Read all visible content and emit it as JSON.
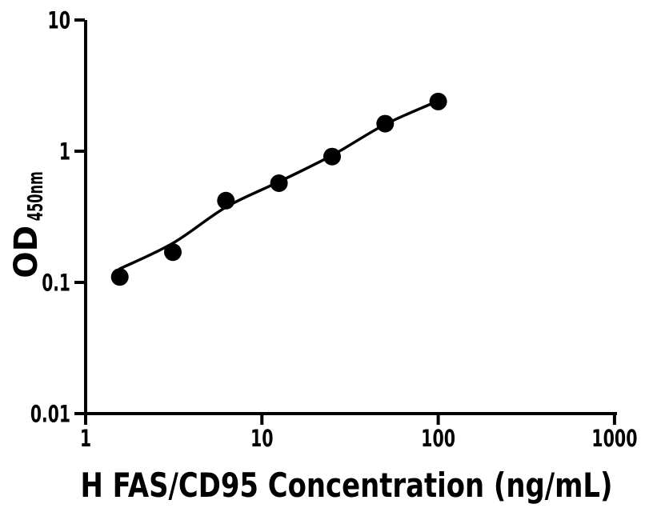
{
  "figure": {
    "background_color": "#ffffff",
    "ink_color": "#000000"
  },
  "chart_data": {
    "type": "scatter",
    "description": "ELISA standard curve, filled circles with smooth fitted line on log-log axes",
    "title": "",
    "xlabel": "H FAS/CD95 Concentration (ng/mL)",
    "ylabel": "OD",
    "ylabel_subscript": "450nm",
    "x_scale": "log10",
    "y_scale": "log10",
    "xlim": [
      1,
      1000
    ],
    "ylim": [
      0.01,
      10
    ],
    "x_ticks": [
      "1",
      "10",
      "100",
      "1000"
    ],
    "y_ticks": [
      "0.01",
      "0.1",
      "1",
      "10"
    ],
    "grid": false,
    "legend": false,
    "marker_color": "#000000",
    "line_color": "#000000",
    "series": [
      {
        "name": "standards",
        "type": "scatter",
        "marker": "filled-circle",
        "color": "#000000",
        "x": [
          1.5625,
          3.125,
          6.25,
          12.5,
          25,
          50,
          100
        ],
        "y": [
          0.11,
          0.17,
          0.42,
          0.57,
          0.91,
          1.62,
          2.39
        ]
      },
      {
        "name": "fitted-curve",
        "type": "smooth-line",
        "color": "#000000",
        "x": [
          1.5625,
          3.125,
          6.25,
          12.5,
          25,
          50,
          100
        ],
        "y": [
          0.127,
          0.199,
          0.374,
          0.585,
          0.93,
          1.6,
          2.42
        ]
      }
    ]
  }
}
